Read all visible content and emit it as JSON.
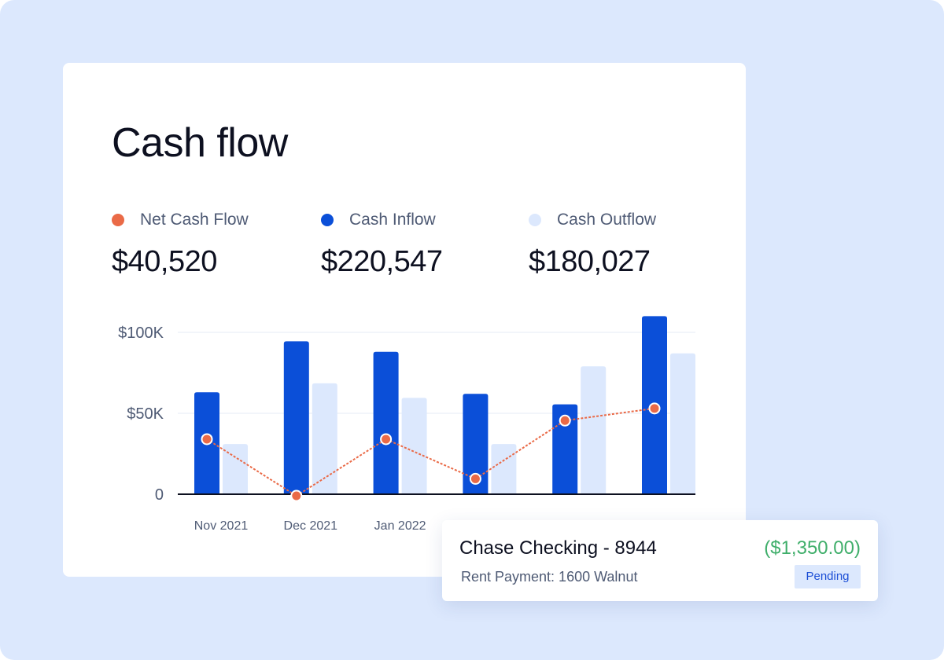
{
  "title": "Cash flow",
  "metrics": [
    {
      "label": "Net Cash Flow",
      "value": "$40,520",
      "color": "#ea6a47"
    },
    {
      "label": "Cash Inflow",
      "value": "$220,547",
      "color": "#0b4fd8"
    },
    {
      "label": "Cash Outflow",
      "value": "$180,027",
      "color": "#dce8fd"
    }
  ],
  "chart_data": {
    "type": "bar",
    "categories": [
      "Nov 2021",
      "Dec 2021",
      "Jan 2022",
      "",
      "",
      ""
    ],
    "series": [
      {
        "name": "Cash Inflow",
        "type": "bar",
        "color": "#0b4fd8",
        "values": [
          63000,
          94500,
          88000,
          62000,
          55500,
          110000
        ]
      },
      {
        "name": "Cash Outflow",
        "type": "bar",
        "color": "#dce8fd",
        "values": [
          31000,
          68500,
          59500,
          31000,
          79000,
          87000
        ]
      },
      {
        "name": "Net Cash Flow",
        "type": "line",
        "color": "#ea6a47",
        "values": [
          34000,
          -1000,
          34000,
          9500,
          45500,
          53000
        ]
      }
    ],
    "yticks": [
      {
        "value": 0,
        "label": "0"
      },
      {
        "value": 50000,
        "label": "$50K"
      },
      {
        "value": 100000,
        "label": "$100K"
      }
    ],
    "ylim": [
      0,
      100000
    ],
    "grid": true
  },
  "transaction": {
    "account": "Chase Checking - 8944",
    "amount": "($1,350.00)",
    "description": "Rent Payment: 1600 Walnut",
    "status": "Pending"
  }
}
